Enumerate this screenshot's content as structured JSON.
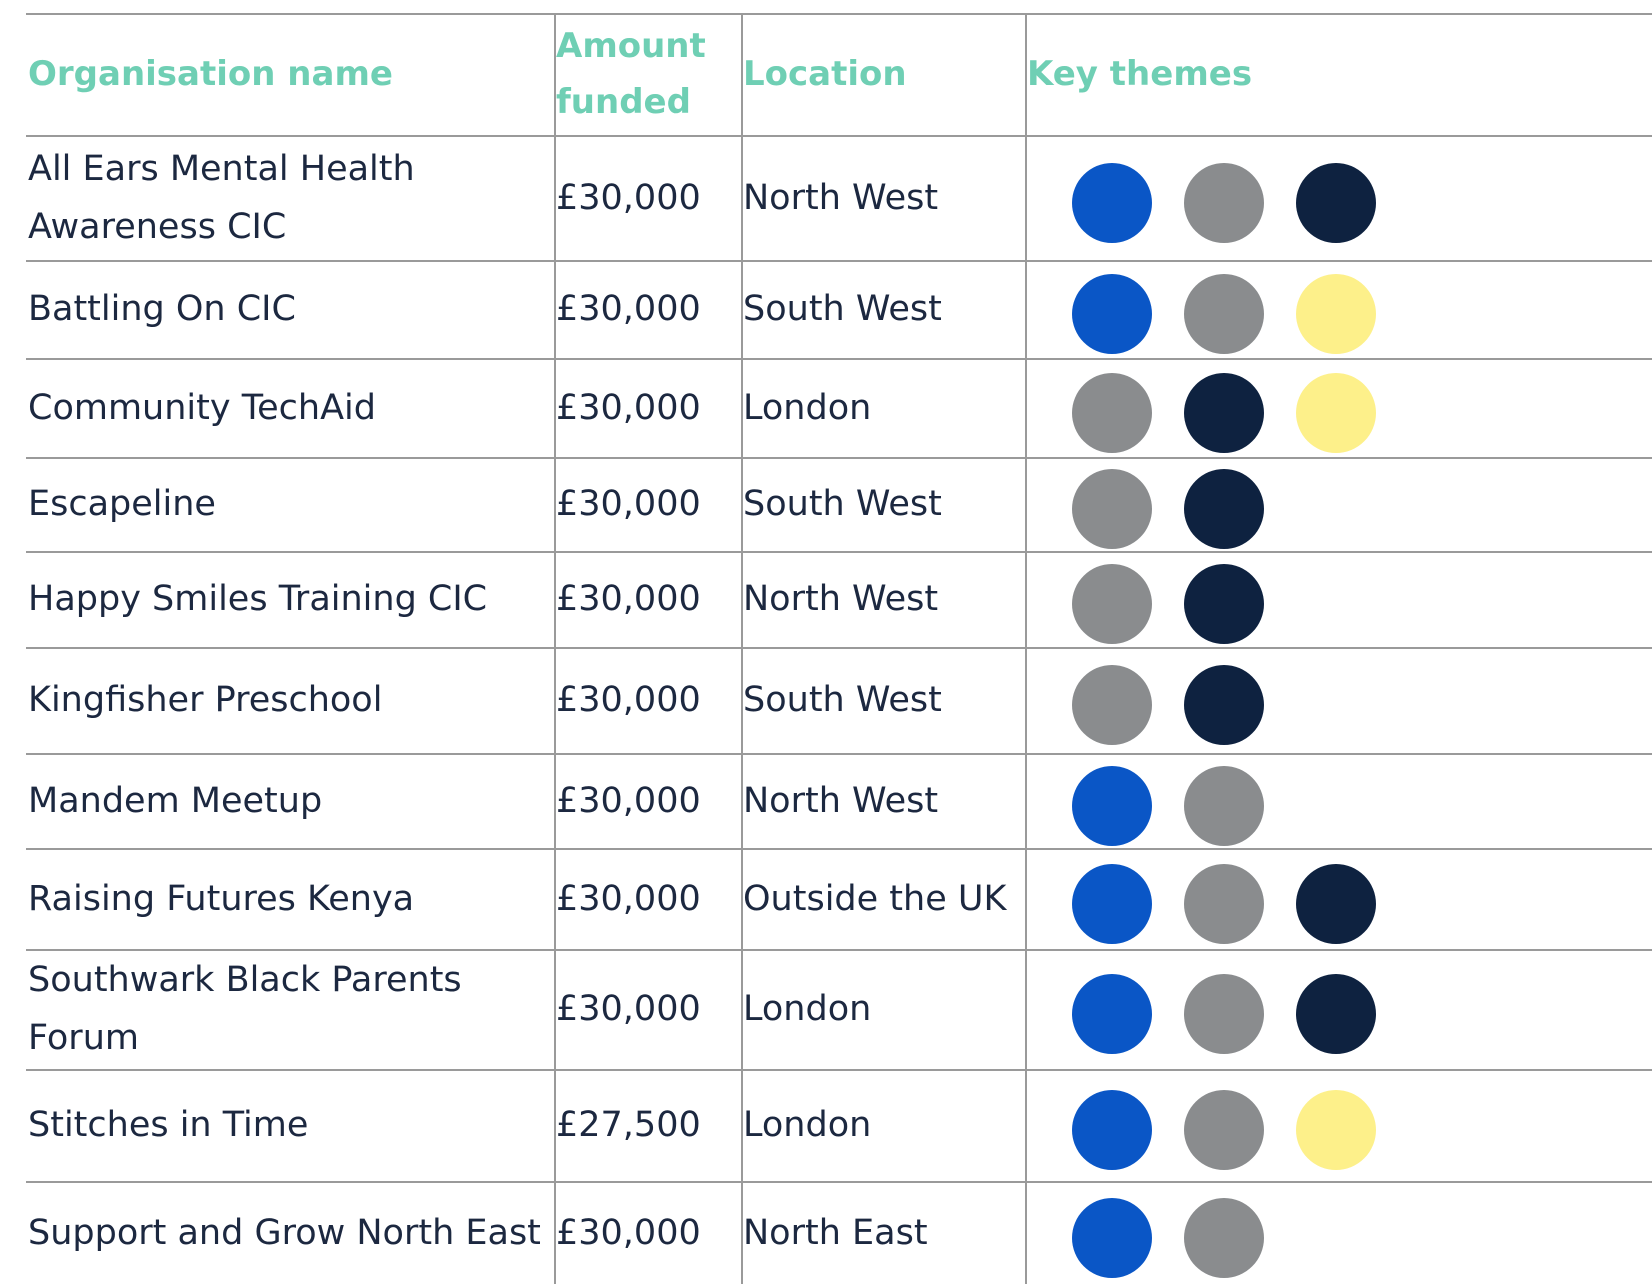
{
  "table": {
    "headers": [
      "Organisation name",
      "Amount funded",
      "Location",
      "Key themes"
    ],
    "rows": [
      {
        "cells": [
          "All Ears Mental Health Awareness CIC",
          "£30,000",
          "North West"
        ],
        "themes": [
          "#0a56c6",
          "#8a8c8e",
          "#0e2240"
        ]
      },
      {
        "cells": [
          "Battling On CIC",
          "£30,000",
          "South West"
        ],
        "themes": [
          "#0a56c6",
          "#8a8c8e",
          "#fdf08a"
        ]
      },
      {
        "cells": [
          "Community TechAid",
          "£30,000",
          "London"
        ],
        "themes": [
          "#8a8c8e",
          "#0e2240",
          "#fdf08a"
        ]
      },
      {
        "cells": [
          "Escapeline",
          "£30,000",
          "South West"
        ],
        "themes": [
          "#8a8c8e",
          "#0e2240"
        ]
      },
      {
        "cells": [
          "Happy Smiles Training CIC",
          "£30,000",
          "North West"
        ],
        "themes": [
          "#8a8c8e",
          "#0e2240"
        ]
      },
      {
        "cells": [
          "Kingfisher Preschool",
          "£30,000",
          "South West"
        ],
        "themes": [
          "#8a8c8e",
          "#0e2240"
        ]
      },
      {
        "cells": [
          "Mandem Meetup",
          "£30,000",
          "North West"
        ],
        "themes": [
          "#0a56c6",
          "#8a8c8e"
        ]
      },
      {
        "cells": [
          "Raising Futures Kenya",
          "£30,000",
          "Outside the UK"
        ],
        "themes": [
          "#0a56c6",
          "#8a8c8e",
          "#0e2240"
        ]
      },
      {
        "cells": [
          "Southwark Black Parents Forum",
          "£30,000",
          "London"
        ],
        "themes": [
          "#0a56c6",
          "#8a8c8e",
          "#0e2240"
        ]
      },
      {
        "cells": [
          "Stitches in Time",
          "£27,500",
          "London"
        ],
        "themes": [
          "#0a56c6",
          "#8a8c8e",
          "#fdf08a"
        ]
      },
      {
        "cells": [
          "Support and Grow North East",
          "£30,000",
          "North East"
        ],
        "themes": [
          "#0a56c6",
          "#8a8c8e"
        ]
      }
    ]
  }
}
